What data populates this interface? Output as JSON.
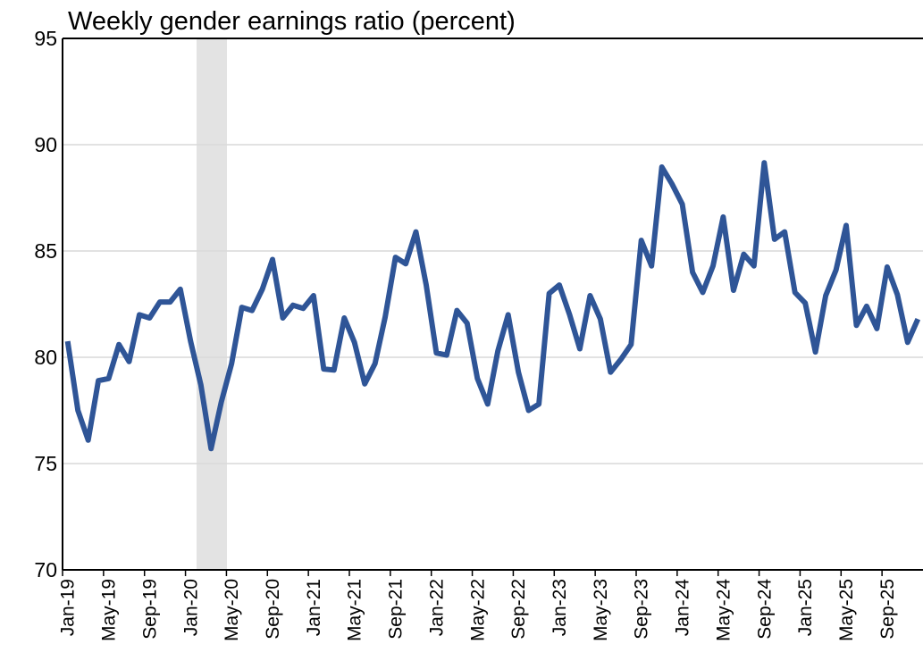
{
  "chart_data": {
    "type": "line",
    "title": "Weekly gender earnings ratio (percent)",
    "categories": [
      "Jan-19",
      null,
      null,
      null,
      "May-19",
      null,
      null,
      null,
      "Sep-19",
      null,
      null,
      null,
      "Jan-20",
      null,
      null,
      null,
      "May-20",
      null,
      null,
      null,
      "Sep-20",
      null,
      null,
      null,
      "Jan-21",
      null,
      null,
      null,
      "May-21",
      null,
      null,
      null,
      "Sep-21",
      null,
      null,
      null,
      "Jan-22",
      null,
      null,
      null,
      "May-22",
      null,
      null,
      null,
      "Sep-22",
      null,
      null,
      null,
      "Jan-23",
      null,
      null,
      null,
      "May-23",
      null,
      null,
      null,
      "Sep-23",
      null,
      null,
      null,
      "Jan-24",
      null,
      null,
      null,
      "May-24",
      null,
      null,
      null,
      "Sep-24",
      null,
      null,
      null,
      "Jan-25",
      null,
      null,
      null,
      "May-25",
      null,
      null,
      null,
      "Sep-25",
      null,
      null,
      null
    ],
    "series": [
      {
        "color": "#2f5597",
        "values": [
          80.75,
          77.5,
          76.1,
          78.9,
          79.0,
          80.6,
          79.8,
          82.0,
          81.85,
          82.6,
          82.6,
          83.2,
          80.75,
          78.7,
          75.7,
          77.9,
          79.7,
          82.35,
          82.2,
          83.2,
          84.6,
          81.85,
          82.45,
          82.3,
          82.9,
          79.45,
          79.4,
          81.85,
          80.7,
          78.75,
          79.7,
          81.9,
          84.7,
          84.4,
          85.9,
          83.4,
          80.2,
          80.1,
          82.2,
          81.6,
          79.0,
          77.8,
          80.3,
          82.0,
          79.3,
          77.5,
          77.8,
          83.0,
          83.4,
          82.0,
          80.4,
          82.9,
          81.8,
          79.3,
          79.9,
          80.6,
          85.5,
          84.3,
          88.95,
          88.15,
          87.2,
          84.0,
          83.05,
          84.3,
          86.6,
          83.15,
          84.85,
          84.3,
          89.15,
          85.55,
          85.9,
          83.05,
          82.55,
          80.25,
          82.9,
          84.1,
          86.2,
          81.5,
          82.4,
          81.35,
          84.25,
          82.95,
          80.7,
          81.8
        ]
      }
    ],
    "ylim": [
      70,
      95
    ],
    "yticks": [
      70,
      75,
      80,
      85,
      90,
      95
    ],
    "grid": true
  }
}
